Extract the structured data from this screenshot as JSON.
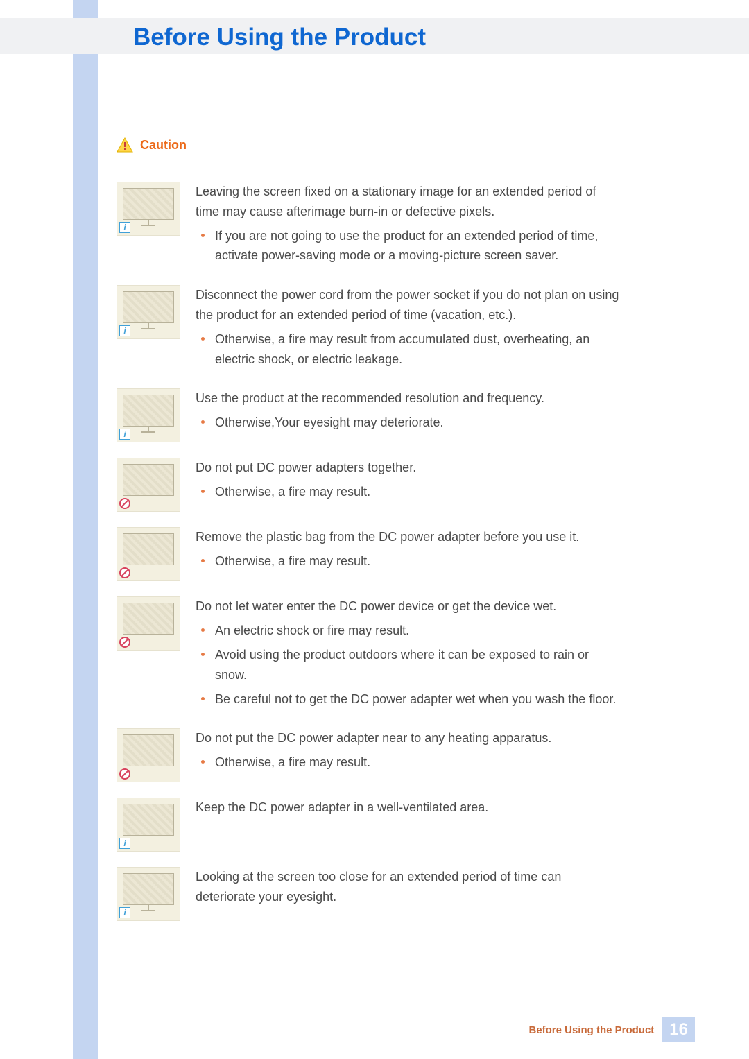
{
  "page": {
    "title": "Before Using the Product",
    "caution_label": "Caution",
    "footer_label": "Before Using the Product",
    "page_number": "16"
  },
  "colors": {
    "accent_blue": "#0f67d1",
    "sidebar_blue": "#c4d5f1",
    "header_band": "#f0f1f3",
    "caution_orange": "#ec6a1a",
    "bullet_orange": "#e67a45",
    "footer_text": "#c86a3a",
    "thumb_bg": "#f3f0e0",
    "body_text": "#4a4a4a",
    "info_badge": "#40a0d8",
    "prohibit_badge": "#d8435e"
  },
  "items": [
    {
      "badge": "info",
      "lead": "Leaving the screen fixed on a stationary image for an extended period of time may cause afterimage burn-in or defective pixels.",
      "bullets": [
        "If you are not going to use the product for an extended period of time, activate power-saving mode or a moving-picture screen saver."
      ]
    },
    {
      "badge": "info",
      "lead": "Disconnect the power cord from the power socket if you do not plan on using the product for an extended period of time (vacation, etc.).",
      "bullets": [
        "Otherwise, a fire may result from accumulated dust, overheating, an electric shock, or electric leakage."
      ]
    },
    {
      "badge": "info",
      "lead": "Use the product at the recommended resolution and frequency.",
      "bullets": [
        "Otherwise,Your eyesight may deteriorate."
      ]
    },
    {
      "badge": "prohibit",
      "lead": "Do not put DC power adapters together.",
      "bullets": [
        "Otherwise, a fire may result."
      ]
    },
    {
      "badge": "prohibit",
      "lead": "Remove the plastic bag from the DC power adapter before you use it.",
      "bullets": [
        "Otherwise, a fire may result."
      ]
    },
    {
      "badge": "prohibit",
      "lead": "Do not let water enter the DC power device or get the device wet.",
      "bullets": [
        "An electric shock or fire may result.",
        "Avoid using the product outdoors where it can be exposed to rain or snow.",
        "Be careful not to get the DC power adapter wet when you wash the floor."
      ]
    },
    {
      "badge": "prohibit",
      "lead": "Do not put the DC power adapter near to any heating apparatus.",
      "bullets": [
        "Otherwise, a fire may result."
      ]
    },
    {
      "badge": "info",
      "lead": "Keep the DC power adapter in a well-ventilated area.",
      "bullets": []
    },
    {
      "badge": "info",
      "lead": "Looking at the screen too close for an extended period of time can deteriorate your eyesight.",
      "bullets": []
    }
  ]
}
